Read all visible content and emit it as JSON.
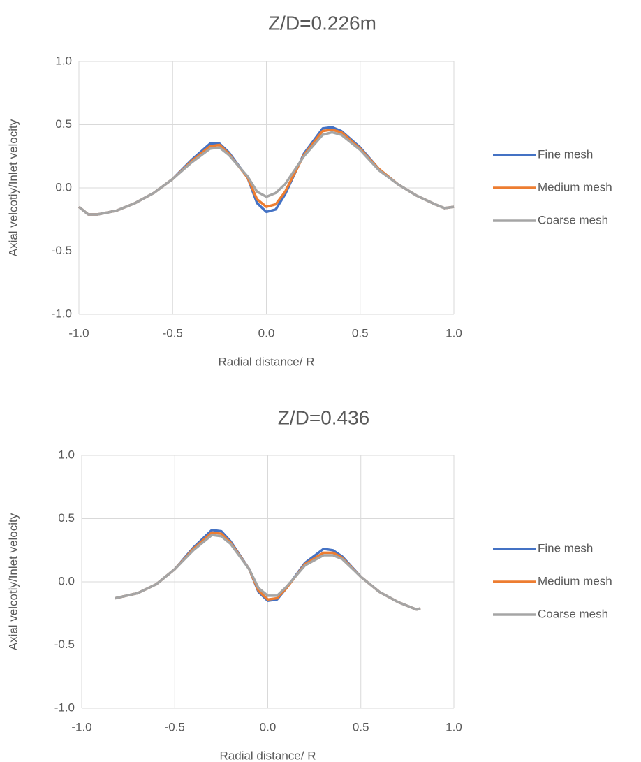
{
  "chart_data": [
    {
      "type": "line",
      "title": "Z/D=0.226m",
      "x_label": "Radial distance/ R",
      "y_label": "Axial velcotiy/Inlet velocity",
      "x": [
        -1.0,
        -0.95,
        -0.9,
        -0.8,
        -0.7,
        -0.6,
        -0.5,
        -0.4,
        -0.3,
        -0.25,
        -0.2,
        -0.1,
        -0.05,
        0.0,
        0.05,
        0.1,
        0.2,
        0.3,
        0.35,
        0.4,
        0.5,
        0.6,
        0.7,
        0.8,
        0.9,
        0.95,
        1.0
      ],
      "series": [
        {
          "name": "Fine mesh",
          "color": "#4472c4",
          "values": [
            -0.15,
            -0.21,
            -0.21,
            -0.18,
            -0.12,
            -0.04,
            0.07,
            0.22,
            0.35,
            0.35,
            0.28,
            0.08,
            -0.12,
            -0.19,
            -0.17,
            -0.05,
            0.27,
            0.47,
            0.48,
            0.45,
            0.32,
            0.15,
            0.03,
            -0.06,
            -0.13,
            -0.16,
            -0.15
          ]
        },
        {
          "name": "Medium mesh",
          "color": "#ed7d31",
          "values": [
            -0.15,
            -0.21,
            -0.21,
            -0.18,
            -0.12,
            -0.04,
            0.07,
            0.21,
            0.33,
            0.34,
            0.27,
            0.08,
            -0.09,
            -0.15,
            -0.13,
            -0.03,
            0.26,
            0.45,
            0.46,
            0.44,
            0.31,
            0.15,
            0.03,
            -0.06,
            -0.13,
            -0.16,
            -0.15
          ]
        },
        {
          "name": "Coarse mesh",
          "color": "#a5a5a5",
          "values": [
            -0.15,
            -0.21,
            -0.21,
            -0.18,
            -0.12,
            -0.04,
            0.07,
            0.2,
            0.31,
            0.32,
            0.26,
            0.09,
            -0.03,
            -0.07,
            -0.04,
            0.03,
            0.25,
            0.42,
            0.44,
            0.42,
            0.3,
            0.14,
            0.03,
            -0.06,
            -0.13,
            -0.16,
            -0.15
          ]
        }
      ],
      "xlim": [
        -1.0,
        1.0
      ],
      "xticks": [
        {
          "value": -1.0,
          "label": "-1.0"
        },
        -0.5,
        {
          "value": 0.0,
          "label": "0.0"
        },
        0.5,
        {
          "value": 1.0,
          "label": "1.0"
        }
      ],
      "ylim": [
        -1.0,
        1.0
      ],
      "yticks": [
        {
          "value": -1.0,
          "label": "-1.0"
        },
        -0.5,
        {
          "value": 0.0,
          "label": "0.0"
        },
        0.5,
        {
          "value": 1.0,
          "label": "1.0"
        }
      ],
      "grid": true,
      "legend": "right"
    },
    {
      "type": "line",
      "title": "Z/D=0.436",
      "x_label": "Radial distance/ R",
      "y_label": "Axial velcotiy/Inlet velocity",
      "x": [
        -0.82,
        -0.7,
        -0.6,
        -0.5,
        -0.4,
        -0.3,
        -0.25,
        -0.2,
        -0.1,
        -0.05,
        0.0,
        0.05,
        0.1,
        0.2,
        0.3,
        0.35,
        0.4,
        0.5,
        0.6,
        0.7,
        0.8,
        0.82
      ],
      "series": [
        {
          "name": "Fine mesh",
          "color": "#4472c4",
          "values": [
            -0.13,
            -0.09,
            -0.02,
            0.1,
            0.27,
            0.41,
            0.4,
            0.32,
            0.1,
            -0.08,
            -0.15,
            -0.14,
            -0.05,
            0.15,
            0.26,
            0.25,
            0.2,
            0.04,
            -0.08,
            -0.16,
            -0.22,
            -0.21
          ]
        },
        {
          "name": "Medium mesh",
          "color": "#ed7d31",
          "values": [
            -0.13,
            -0.09,
            -0.02,
            0.1,
            0.26,
            0.39,
            0.38,
            0.31,
            0.1,
            -0.07,
            -0.14,
            -0.13,
            -0.05,
            0.14,
            0.23,
            0.23,
            0.19,
            0.04,
            -0.08,
            -0.16,
            -0.22,
            -0.21
          ]
        },
        {
          "name": "Coarse mesh",
          "color": "#a5a5a5",
          "values": [
            -0.13,
            -0.09,
            -0.02,
            0.1,
            0.25,
            0.37,
            0.36,
            0.3,
            0.1,
            -0.05,
            -0.11,
            -0.11,
            -0.04,
            0.13,
            0.21,
            0.21,
            0.18,
            0.04,
            -0.08,
            -0.16,
            -0.22,
            -0.21
          ]
        }
      ],
      "xlim": [
        -1.0,
        1.0
      ],
      "xticks": [
        {
          "value": -1.0,
          "label": "-1.0"
        },
        -0.5,
        {
          "value": 0.0,
          "label": "0.0"
        },
        0.5,
        {
          "value": 1.0,
          "label": "1.0"
        }
      ],
      "ylim": [
        -1.0,
        1.0
      ],
      "yticks": [
        {
          "value": -1.0,
          "label": "-1.0"
        },
        -0.5,
        {
          "value": 0.0,
          "label": "0.0"
        },
        0.5,
        {
          "value": 1.0,
          "label": "1.0"
        }
      ],
      "grid": true,
      "legend": "right"
    }
  ]
}
